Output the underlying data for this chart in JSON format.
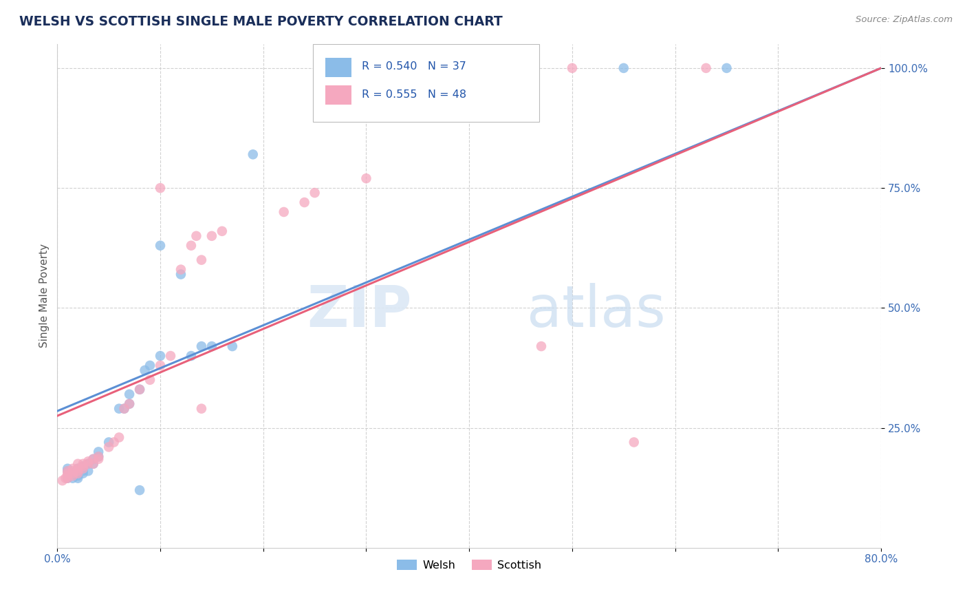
{
  "title": "WELSH VS SCOTTISH SINGLE MALE POVERTY CORRELATION CHART",
  "source_text": "Source: ZipAtlas.com",
  "ylabel": "Single Male Poverty",
  "xlim": [
    0.0,
    0.8
  ],
  "ylim": [
    0.0,
    1.05
  ],
  "ytick_positions": [
    0.25,
    0.5,
    0.75,
    1.0
  ],
  "ytick_labels": [
    "25.0%",
    "50.0%",
    "75.0%",
    "100.0%"
  ],
  "welsh_color": "#8bbce8",
  "scottish_color": "#f5a8bf",
  "welsh_line_color": "#5b8fd4",
  "scottish_line_color": "#e8607a",
  "welsh_R": 0.54,
  "welsh_N": 37,
  "scottish_R": 0.555,
  "scottish_N": 48,
  "welsh_line_x0": 0.0,
  "welsh_line_y0": 0.285,
  "welsh_line_x1": 0.8,
  "welsh_line_y1": 1.0,
  "scottish_line_x0": 0.0,
  "scottish_line_y0": 0.275,
  "scottish_line_x1": 0.8,
  "scottish_line_y1": 1.0,
  "welsh_scatter": [
    [
      0.01,
      0.145
    ],
    [
      0.01,
      0.16
    ],
    [
      0.01,
      0.165
    ],
    [
      0.015,
      0.145
    ],
    [
      0.015,
      0.155
    ],
    [
      0.02,
      0.145
    ],
    [
      0.02,
      0.15
    ],
    [
      0.02,
      0.155
    ],
    [
      0.02,
      0.165
    ],
    [
      0.025,
      0.155
    ],
    [
      0.025,
      0.16
    ],
    [
      0.025,
      0.17
    ],
    [
      0.03,
      0.16
    ],
    [
      0.03,
      0.175
    ],
    [
      0.035,
      0.175
    ],
    [
      0.035,
      0.185
    ],
    [
      0.04,
      0.19
    ],
    [
      0.04,
      0.2
    ],
    [
      0.05,
      0.22
    ],
    [
      0.06,
      0.29
    ],
    [
      0.065,
      0.29
    ],
    [
      0.07,
      0.3
    ],
    [
      0.07,
      0.32
    ],
    [
      0.08,
      0.33
    ],
    [
      0.085,
      0.37
    ],
    [
      0.09,
      0.38
    ],
    [
      0.1,
      0.4
    ],
    [
      0.12,
      0.57
    ],
    [
      0.13,
      0.4
    ],
    [
      0.14,
      0.42
    ],
    [
      0.15,
      0.42
    ],
    [
      0.17,
      0.42
    ],
    [
      0.19,
      0.82
    ],
    [
      0.55,
      1.0
    ],
    [
      0.65,
      1.0
    ],
    [
      0.1,
      0.63
    ],
    [
      0.08,
      0.12
    ]
  ],
  "scottish_scatter": [
    [
      0.005,
      0.14
    ],
    [
      0.008,
      0.145
    ],
    [
      0.01,
      0.145
    ],
    [
      0.01,
      0.15
    ],
    [
      0.01,
      0.155
    ],
    [
      0.01,
      0.16
    ],
    [
      0.015,
      0.15
    ],
    [
      0.015,
      0.155
    ],
    [
      0.015,
      0.16
    ],
    [
      0.015,
      0.165
    ],
    [
      0.02,
      0.155
    ],
    [
      0.02,
      0.16
    ],
    [
      0.02,
      0.165
    ],
    [
      0.02,
      0.175
    ],
    [
      0.025,
      0.165
    ],
    [
      0.025,
      0.17
    ],
    [
      0.025,
      0.175
    ],
    [
      0.03,
      0.175
    ],
    [
      0.03,
      0.18
    ],
    [
      0.035,
      0.175
    ],
    [
      0.035,
      0.185
    ],
    [
      0.04,
      0.185
    ],
    [
      0.04,
      0.19
    ],
    [
      0.05,
      0.21
    ],
    [
      0.055,
      0.22
    ],
    [
      0.06,
      0.23
    ],
    [
      0.065,
      0.29
    ],
    [
      0.07,
      0.3
    ],
    [
      0.08,
      0.33
    ],
    [
      0.09,
      0.35
    ],
    [
      0.1,
      0.38
    ],
    [
      0.11,
      0.4
    ],
    [
      0.12,
      0.58
    ],
    [
      0.13,
      0.63
    ],
    [
      0.135,
      0.65
    ],
    [
      0.14,
      0.6
    ],
    [
      0.15,
      0.65
    ],
    [
      0.16,
      0.66
    ],
    [
      0.22,
      0.7
    ],
    [
      0.24,
      0.72
    ],
    [
      0.25,
      0.74
    ],
    [
      0.3,
      0.77
    ],
    [
      0.47,
      0.42
    ],
    [
      0.56,
      0.22
    ],
    [
      0.5,
      1.0
    ],
    [
      0.63,
      1.0
    ],
    [
      0.14,
      0.29
    ],
    [
      0.1,
      0.75
    ]
  ],
  "background_color": "#ffffff",
  "grid_color": "#cccccc",
  "title_color": "#1a2e5a",
  "source_color": "#888888",
  "legend_label_welsh": "Welsh",
  "legend_label_scottish": "Scottish",
  "watermark_text": "ZIPatlas"
}
